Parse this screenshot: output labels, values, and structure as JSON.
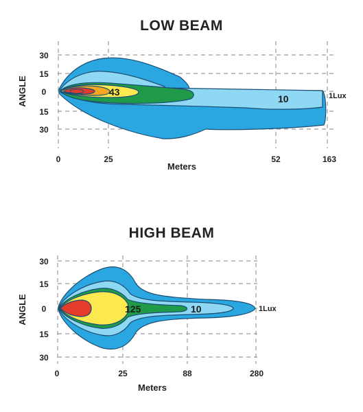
{
  "chart_data": [
    {
      "type": "area",
      "title": "LOW BEAM",
      "xlabel": "Meters",
      "ylabel": "ANGLE",
      "x_ticks": [
        "0",
        "25",
        "52",
        "163"
      ],
      "y_ticks": [
        "30",
        "15",
        "0",
        "15",
        "30"
      ],
      "grid": true,
      "series": [
        {
          "name": "1Lux",
          "color": "#2aa7e1"
        },
        {
          "name": "10",
          "color": "#8fd8f4"
        },
        {
          "color": "#1f9a48"
        },
        {
          "name": "43",
          "color": "#fce94f"
        },
        {
          "color": "#f5a623"
        },
        {
          "color": "#e53b2a"
        }
      ]
    },
    {
      "type": "area",
      "title": "HIGH BEAM",
      "xlabel": "Meters",
      "ylabel": "ANGLE",
      "x_ticks": [
        "0",
        "25",
        "88",
        "280"
      ],
      "y_ticks": [
        "30",
        "15",
        "0",
        "15",
        "30"
      ],
      "grid": true,
      "series": [
        {
          "name": "1Lux",
          "color": "#2aa7e1"
        },
        {
          "name": "10",
          "color": "#8fd8f4"
        },
        {
          "name": "125",
          "color": "#1f9a48"
        },
        {
          "color": "#fce94f"
        },
        {
          "color": "#e53b2a"
        }
      ]
    }
  ]
}
